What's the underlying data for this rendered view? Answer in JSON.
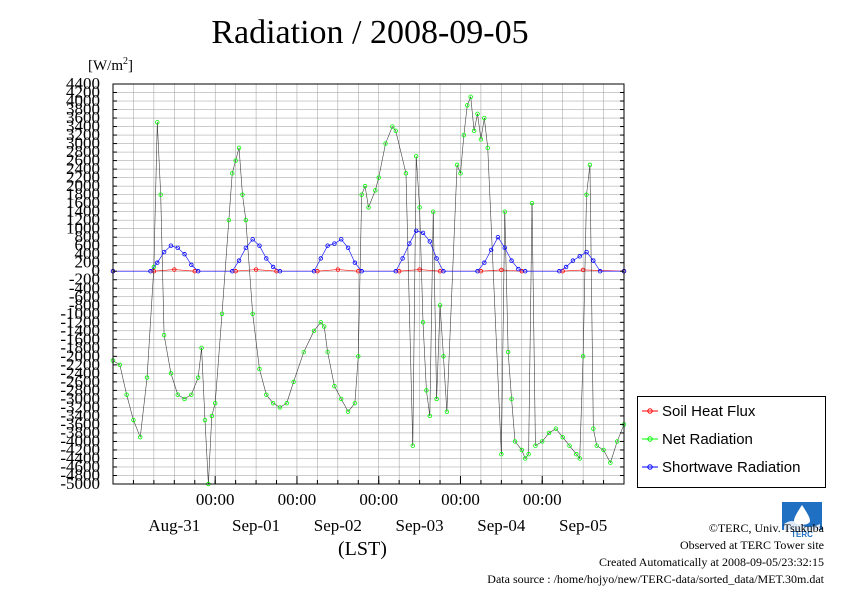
{
  "title": "Radiation / 2008-09-05",
  "unit": {
    "prefix": "[W/m",
    "sup": "2",
    "suffix": "]"
  },
  "xlabel": "(LST)",
  "footer": {
    "copyright": "©TERC, Univ. Tsukuba",
    "observed": "Observed at TERC Tower site",
    "created": "Created Automatically at 2008-09-05/23:32:15",
    "source": "Data source : /home/hojyo/new/TERC-data/sorted_data/MET.30m.dat"
  },
  "logo_text": "TERC",
  "chart_data": {
    "type": "line",
    "title": "Radiation / 2008-09-05",
    "xlabel": "(LST)",
    "ylabel": "[W/m2]",
    "ylim": [
      -5000,
      4400
    ],
    "ytick_step": 200,
    "yticks_labeled_every": 200,
    "grid": true,
    "legend_position": "bottom-right",
    "time_axis": {
      "start": "2008-08-30T18:00",
      "end": "2008-09-05T24:00",
      "tick_labels": [
        "00:00",
        "00:00",
        "00:00",
        "00:00",
        "00:00"
      ],
      "tick_times": [
        "2008-09-01T00:00",
        "2008-09-02T00:00",
        "2008-09-03T00:00",
        "2008-09-04T00:00",
        "2008-09-05T00:00"
      ],
      "day_labels": [
        "Aug-31",
        "Sep-01",
        "Sep-02",
        "Sep-03",
        "Sep-04",
        "Sep-05"
      ],
      "day_label_times": [
        "2008-08-31T12:00",
        "2008-09-01T12:00",
        "2008-09-02T12:00",
        "2008-09-03T12:00",
        "2008-09-04T12:00",
        "2008-09-05T12:00"
      ]
    },
    "series": [
      {
        "name": "Soil Heat Flux",
        "color": "#ff0000",
        "marker": "circle",
        "values": [
          [
            "2008-08-30T18:00",
            0
          ],
          [
            "2008-08-31T06:00",
            0
          ],
          [
            "2008-08-31T12:00",
            40
          ],
          [
            "2008-08-31T18:00",
            0
          ],
          [
            "2008-09-01T06:00",
            0
          ],
          [
            "2008-09-01T12:00",
            40
          ],
          [
            "2008-09-01T18:00",
            0
          ],
          [
            "2008-09-02T06:00",
            0
          ],
          [
            "2008-09-02T12:00",
            40
          ],
          [
            "2008-09-02T18:00",
            0
          ],
          [
            "2008-09-03T06:00",
            0
          ],
          [
            "2008-09-03T12:00",
            40
          ],
          [
            "2008-09-03T18:00",
            0
          ],
          [
            "2008-09-04T06:00",
            0
          ],
          [
            "2008-09-04T12:00",
            30
          ],
          [
            "2008-09-04T18:00",
            0
          ],
          [
            "2008-09-05T06:00",
            0
          ],
          [
            "2008-09-05T12:00",
            30
          ],
          [
            "2008-09-05T24:00",
            0
          ]
        ]
      },
      {
        "name": "Net Radiation",
        "color": "#00ff00",
        "marker": "circle",
        "values": [
          [
            "2008-08-30T18:00",
            -2100
          ],
          [
            "2008-08-30T20:00",
            -2200
          ],
          [
            "2008-08-30T22:00",
            -2900
          ],
          [
            "2008-08-31T00:00",
            -3500
          ],
          [
            "2008-08-31T02:00",
            -3900
          ],
          [
            "2008-08-31T04:00",
            -2500
          ],
          [
            "2008-08-31T06:00",
            100
          ],
          [
            "2008-08-31T07:00",
            3500
          ],
          [
            "2008-08-31T08:00",
            1800
          ],
          [
            "2008-08-31T09:00",
            -1500
          ],
          [
            "2008-08-31T11:00",
            -2400
          ],
          [
            "2008-08-31T13:00",
            -2900
          ],
          [
            "2008-08-31T15:00",
            -3000
          ],
          [
            "2008-08-31T17:00",
            -2900
          ],
          [
            "2008-08-31T19:00",
            -2500
          ],
          [
            "2008-08-31T20:00",
            -1800
          ],
          [
            "2008-08-31T21:00",
            -3500
          ],
          [
            "2008-08-31T22:00",
            -5000
          ],
          [
            "2008-08-31T23:00",
            -3400
          ],
          [
            "2008-09-01T00:00",
            -3100
          ],
          [
            "2008-09-01T02:00",
            -1000
          ],
          [
            "2008-09-01T04:00",
            1200
          ],
          [
            "2008-09-01T05:00",
            2300
          ],
          [
            "2008-09-01T06:00",
            2600
          ],
          [
            "2008-09-01T07:00",
            2900
          ],
          [
            "2008-09-01T08:00",
            1800
          ],
          [
            "2008-09-01T09:00",
            1200
          ],
          [
            "2008-09-01T11:00",
            -1000
          ],
          [
            "2008-09-01T13:00",
            -2300
          ],
          [
            "2008-09-01T15:00",
            -2900
          ],
          [
            "2008-09-01T17:00",
            -3100
          ],
          [
            "2008-09-01T19:00",
            -3200
          ],
          [
            "2008-09-01T21:00",
            -3100
          ],
          [
            "2008-09-01T23:00",
            -2600
          ],
          [
            "2008-09-02T02:00",
            -1900
          ],
          [
            "2008-09-02T05:00",
            -1400
          ],
          [
            "2008-09-02T07:00",
            -1200
          ],
          [
            "2008-09-02T08:00",
            -1300
          ],
          [
            "2008-09-02T09:00",
            -1900
          ],
          [
            "2008-09-02T11:00",
            -2700
          ],
          [
            "2008-09-02T13:00",
            -3000
          ],
          [
            "2008-09-02T15:00",
            -3300
          ],
          [
            "2008-09-02T17:00",
            -3100
          ],
          [
            "2008-09-02T18:00",
            -2000
          ],
          [
            "2008-09-02T19:00",
            1800
          ],
          [
            "2008-09-02T20:00",
            2000
          ],
          [
            "2008-09-02T21:00",
            1500
          ],
          [
            "2008-09-02T23:00",
            1900
          ],
          [
            "2008-09-03T00:00",
            2200
          ],
          [
            "2008-09-03T02:00",
            3000
          ],
          [
            "2008-09-03T04:00",
            3400
          ],
          [
            "2008-09-03T05:00",
            3300
          ],
          [
            "2008-09-03T08:00",
            2300
          ],
          [
            "2008-09-03T10:00",
            -4100
          ],
          [
            "2008-09-03T11:00",
            2700
          ],
          [
            "2008-09-03T12:00",
            1500
          ],
          [
            "2008-09-03T13:00",
            -1200
          ],
          [
            "2008-09-03T14:00",
            -2800
          ],
          [
            "2008-09-03T15:00",
            -3400
          ],
          [
            "2008-09-03T16:00",
            1400
          ],
          [
            "2008-09-03T17:00",
            -3000
          ],
          [
            "2008-09-03T18:00",
            -800
          ],
          [
            "2008-09-03T19:00",
            -2000
          ],
          [
            "2008-09-03T20:00",
            -3300
          ],
          [
            "2008-09-03T23:00",
            2500
          ],
          [
            "2008-09-04T00:00",
            2300
          ],
          [
            "2008-09-04T01:00",
            3200
          ],
          [
            "2008-09-04T02:00",
            3900
          ],
          [
            "2008-09-04T03:00",
            4100
          ],
          [
            "2008-09-04T04:00",
            3300
          ],
          [
            "2008-09-04T05:00",
            3700
          ],
          [
            "2008-09-04T06:00",
            3100
          ],
          [
            "2008-09-04T07:00",
            3600
          ],
          [
            "2008-09-04T08:00",
            2900
          ],
          [
            "2008-09-04T12:00",
            -4300
          ],
          [
            "2008-09-04T13:00",
            1400
          ],
          [
            "2008-09-04T14:00",
            -1900
          ],
          [
            "2008-09-04T15:00",
            -3000
          ],
          [
            "2008-09-04T16:00",
            -4000
          ],
          [
            "2008-09-04T18:00",
            -4200
          ],
          [
            "2008-09-04T19:00",
            -4400
          ],
          [
            "2008-09-04T20:00",
            -4300
          ],
          [
            "2008-09-04T21:00",
            1600
          ],
          [
            "2008-09-04T22:00",
            -4100
          ],
          [
            "2008-09-05T00:00",
            -4000
          ],
          [
            "2008-09-05T02:00",
            -3800
          ],
          [
            "2008-09-05T04:00",
            -3700
          ],
          [
            "2008-09-05T06:00",
            -3900
          ],
          [
            "2008-09-05T08:00",
            -4100
          ],
          [
            "2008-09-05T10:00",
            -4300
          ],
          [
            "2008-09-05T11:00",
            -4400
          ],
          [
            "2008-09-05T12:00",
            -2000
          ],
          [
            "2008-09-05T13:00",
            1800
          ],
          [
            "2008-09-05T14:00",
            2500
          ],
          [
            "2008-09-05T15:00",
            -3700
          ],
          [
            "2008-09-05T16:00",
            -4100
          ],
          [
            "2008-09-05T18:00",
            -4200
          ],
          [
            "2008-09-05T20:00",
            -4500
          ],
          [
            "2008-09-05T22:00",
            -4000
          ],
          [
            "2008-09-05T24:00",
            -3600
          ]
        ]
      },
      {
        "name": "Shortwave Radiation",
        "color": "#0000ff",
        "marker": "circle",
        "values": [
          [
            "2008-08-30T18:00",
            0
          ],
          [
            "2008-08-31T05:00",
            0
          ],
          [
            "2008-08-31T07:00",
            200
          ],
          [
            "2008-08-31T09:00",
            450
          ],
          [
            "2008-08-31T11:00",
            600
          ],
          [
            "2008-08-31T13:00",
            550
          ],
          [
            "2008-08-31T15:00",
            400
          ],
          [
            "2008-08-31T17:00",
            150
          ],
          [
            "2008-08-31T19:00",
            0
          ],
          [
            "2008-09-01T05:00",
            0
          ],
          [
            "2008-09-01T07:00",
            250
          ],
          [
            "2008-09-01T09:00",
            550
          ],
          [
            "2008-09-01T11:00",
            750
          ],
          [
            "2008-09-01T13:00",
            600
          ],
          [
            "2008-09-01T15:00",
            300
          ],
          [
            "2008-09-01T17:00",
            100
          ],
          [
            "2008-09-01T19:00",
            0
          ],
          [
            "2008-09-02T05:00",
            0
          ],
          [
            "2008-09-02T07:00",
            300
          ],
          [
            "2008-09-02T09:00",
            600
          ],
          [
            "2008-09-02T11:00",
            650
          ],
          [
            "2008-09-02T13:00",
            750
          ],
          [
            "2008-09-02T15:00",
            550
          ],
          [
            "2008-09-02T17:00",
            200
          ],
          [
            "2008-09-02T19:00",
            0
          ],
          [
            "2008-09-03T05:00",
            0
          ],
          [
            "2008-09-03T07:00",
            300
          ],
          [
            "2008-09-03T09:00",
            650
          ],
          [
            "2008-09-03T11:00",
            950
          ],
          [
            "2008-09-03T13:00",
            900
          ],
          [
            "2008-09-03T15:00",
            700
          ],
          [
            "2008-09-03T17:00",
            300
          ],
          [
            "2008-09-03T19:00",
            0
          ],
          [
            "2008-09-04T05:00",
            0
          ],
          [
            "2008-09-04T07:00",
            200
          ],
          [
            "2008-09-04T09:00",
            500
          ],
          [
            "2008-09-04T11:00",
            800
          ],
          [
            "2008-09-04T13:00",
            550
          ],
          [
            "2008-09-04T15:00",
            250
          ],
          [
            "2008-09-04T17:00",
            50
          ],
          [
            "2008-09-04T19:00",
            0
          ],
          [
            "2008-09-05T05:00",
            0
          ],
          [
            "2008-09-05T07:00",
            100
          ],
          [
            "2008-09-05T09:00",
            250
          ],
          [
            "2008-09-05T11:00",
            350
          ],
          [
            "2008-09-05T13:00",
            450
          ],
          [
            "2008-09-05T15:00",
            250
          ],
          [
            "2008-09-05T17:00",
            0
          ],
          [
            "2008-09-05T24:00",
            0
          ]
        ]
      }
    ]
  }
}
